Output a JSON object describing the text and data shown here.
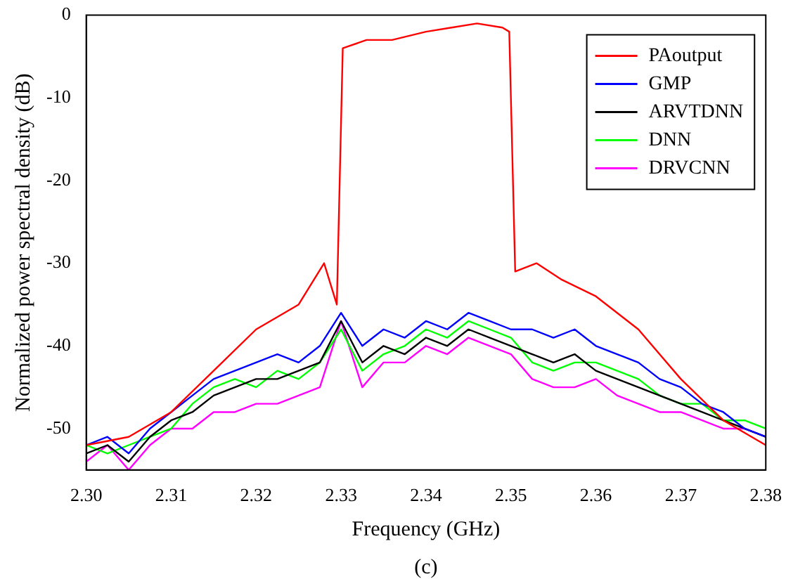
{
  "chart_data": {
    "type": "line",
    "xlabel": "Frequency (GHz)",
    "ylabel": "Normalized power spectral density (dB)",
    "annotations": [
      "(c)"
    ],
    "x": [
      2.3,
      2.3025,
      2.305,
      2.3075,
      2.31,
      2.3125,
      2.315,
      2.3175,
      2.32,
      2.3225,
      2.325,
      2.3275,
      2.33,
      2.3325,
      2.335,
      2.3375,
      2.34,
      2.3425,
      2.345,
      2.3475,
      2.35,
      2.3525,
      2.355,
      2.3575,
      2.36,
      2.3625,
      2.365,
      2.3675,
      2.37,
      2.3725,
      2.375,
      2.3775,
      2.38
    ],
    "series": [
      {
        "name": "PAoutput",
        "color": "#ff0000",
        "x": [
          2.3,
          2.305,
          2.31,
          2.315,
          2.32,
          2.325,
          2.328,
          2.3295,
          2.3302,
          2.333,
          2.336,
          2.34,
          2.343,
          2.346,
          2.349,
          2.3498,
          2.3505,
          2.353,
          2.356,
          2.36,
          2.365,
          2.37,
          2.375,
          2.38
        ],
        "values": [
          -52,
          -51,
          -48,
          -43,
          -38,
          -35,
          -30,
          -35,
          -4,
          -3,
          -3,
          -2,
          -1.5,
          -1,
          -1.5,
          -2,
          -31,
          -30,
          -32,
          -34,
          -38,
          -44,
          -49,
          -52
        ]
      },
      {
        "name": "GMP",
        "color": "#0000ff",
        "values": [
          -52,
          -51,
          -53,
          -50,
          -48,
          -46,
          -44,
          -43,
          -42,
          -41,
          -42,
          -40,
          -36,
          -40,
          -38,
          -39,
          -37,
          -38,
          -36,
          -37,
          -38,
          -38,
          -39,
          -38,
          -40,
          -41,
          -42,
          -44,
          -45,
          -47,
          -48,
          -50,
          -51
        ]
      },
      {
        "name": "ARVTDNN",
        "color": "#000000",
        "values": [
          -53,
          -52,
          -54,
          -51,
          -49,
          -48,
          -46,
          -45,
          -44,
          -44,
          -43,
          -42,
          -37,
          -42,
          -40,
          -41,
          -39,
          -40,
          -38,
          -39,
          -40,
          -41,
          -42,
          -41,
          -43,
          -44,
          -45,
          -46,
          -47,
          -48,
          -49,
          -50,
          -51
        ]
      },
      {
        "name": "DNN",
        "color": "#00ff00",
        "values": [
          -52,
          -53,
          -52,
          -51,
          -50,
          -47,
          -45,
          -44,
          -45,
          -43,
          -44,
          -42,
          -38,
          -43,
          -41,
          -40,
          -38,
          -39,
          -37,
          -38,
          -39,
          -42,
          -43,
          -42,
          -42,
          -43,
          -44,
          -46,
          -47,
          -47,
          -49,
          -49,
          -50
        ]
      },
      {
        "name": "DRVCNN",
        "color": "#ff00ff",
        "values": [
          -54,
          -52,
          -55,
          -52,
          -50,
          -50,
          -48,
          -48,
          -47,
          -47,
          -46,
          -45,
          -37,
          -45,
          -42,
          -42,
          -40,
          -41,
          -39,
          -40,
          -41,
          -44,
          -45,
          -45,
          -44,
          -46,
          -47,
          -48,
          -48,
          -49,
          -50,
          -50,
          -51
        ]
      }
    ],
    "xlim": [
      2.3,
      2.38
    ],
    "xticks": [
      {
        "value": 2.3,
        "label": "2.30"
      },
      {
        "value": 2.31,
        "label": "2.31"
      },
      {
        "value": 2.32,
        "label": "2.32"
      },
      {
        "value": 2.33,
        "label": "2.33"
      },
      {
        "value": 2.34,
        "label": "2.34"
      },
      {
        "value": 2.35,
        "label": "2.35"
      },
      {
        "value": 2.36,
        "label": "2.36"
      },
      {
        "value": 2.37,
        "label": "2.37"
      },
      {
        "value": 2.38,
        "label": "2.38"
      }
    ],
    "ylim": [
      -55,
      0
    ],
    "yticks": [
      -50,
      -40,
      -30,
      -20,
      -10,
      0
    ],
    "grid": false,
    "legend": "top right",
    "marker": "none",
    "line_style": "solid"
  }
}
